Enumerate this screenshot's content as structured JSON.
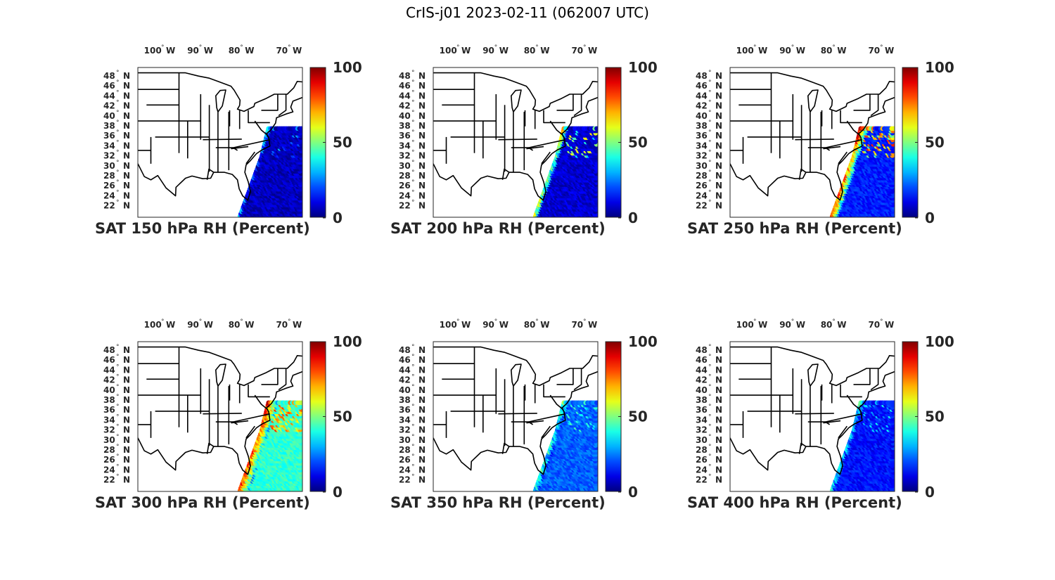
{
  "figure": {
    "title": "CrIS-j01 2023-02-11 (062007 UTC)"
  },
  "axes": {
    "lon_ticks": [
      "100",
      "90",
      "80",
      "70"
    ],
    "lon_suffix": "W",
    "lat_ticks": [
      "48",
      "46",
      "44",
      "42",
      "40",
      "38",
      "36",
      "34",
      "32",
      "30",
      "28",
      "26",
      "24",
      "22"
    ],
    "lat_suffix": "N",
    "lon_range": [
      -106,
      -68
    ],
    "lat_range": [
      22,
      50
    ],
    "colorbar_ticks": [
      "100",
      "50",
      "0"
    ],
    "colorbar_range": [
      0,
      100
    ],
    "colormap": "jet"
  },
  "chart_data": [
    {
      "type": "heatmap",
      "title": "SAT 150 hPa RH (Percent)",
      "pressure_hpa": 150,
      "mean_rh": 6,
      "moist_band_rh": 30,
      "band_width": 0.6
    },
    {
      "type": "heatmap",
      "title": "SAT 200 hPa RH (Percent)",
      "pressure_hpa": 200,
      "mean_rh": 8,
      "moist_band_rh": 65,
      "band_width": 1.0
    },
    {
      "type": "heatmap",
      "title": "SAT 250 hPa RH (Percent)",
      "pressure_hpa": 250,
      "mean_rh": 15,
      "moist_band_rh": 85,
      "band_width": 1.8
    },
    {
      "type": "heatmap",
      "title": "SAT 300 hPa RH (Percent)",
      "pressure_hpa": 300,
      "mean_rh": 42,
      "moist_band_rh": 85,
      "band_width": 2.5
    },
    {
      "type": "heatmap",
      "title": "SAT 350 hPa RH (Percent)",
      "pressure_hpa": 350,
      "mean_rh": 22,
      "moist_band_rh": 45,
      "band_width": 1.4
    },
    {
      "type": "heatmap",
      "title": "SAT 400 hPa RH (Percent)",
      "pressure_hpa": 400,
      "mean_rh": 14,
      "moist_band_rh": 40,
      "band_width": 1.0
    }
  ]
}
